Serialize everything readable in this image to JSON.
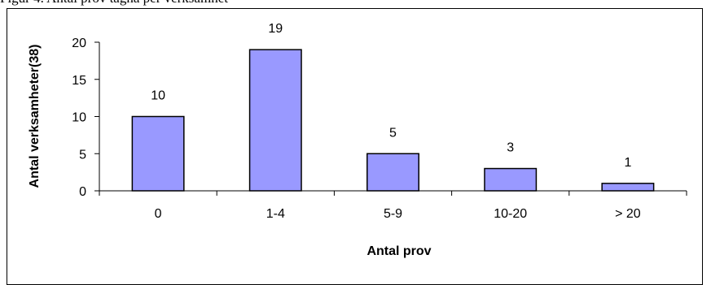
{
  "header_text": "Figur 4. Antal prov tagna per verksamhet",
  "chart_data": {
    "type": "bar",
    "categories": [
      "0",
      "1-4",
      "5-9",
      "10-20",
      "> 20"
    ],
    "values": [
      10,
      19,
      5,
      3,
      1
    ],
    "data_labels": [
      "10",
      "19",
      "5",
      "3",
      "1"
    ],
    "title": "",
    "xlabel": "Antal prov",
    "ylabel": "Antal verksamheter(38)",
    "ylim": [
      0,
      20
    ],
    "yticks": [
      0,
      5,
      10,
      15,
      20
    ],
    "grid": false,
    "legend": "none",
    "bar_color": "#9999FF",
    "bar_stroke": "#000000"
  }
}
